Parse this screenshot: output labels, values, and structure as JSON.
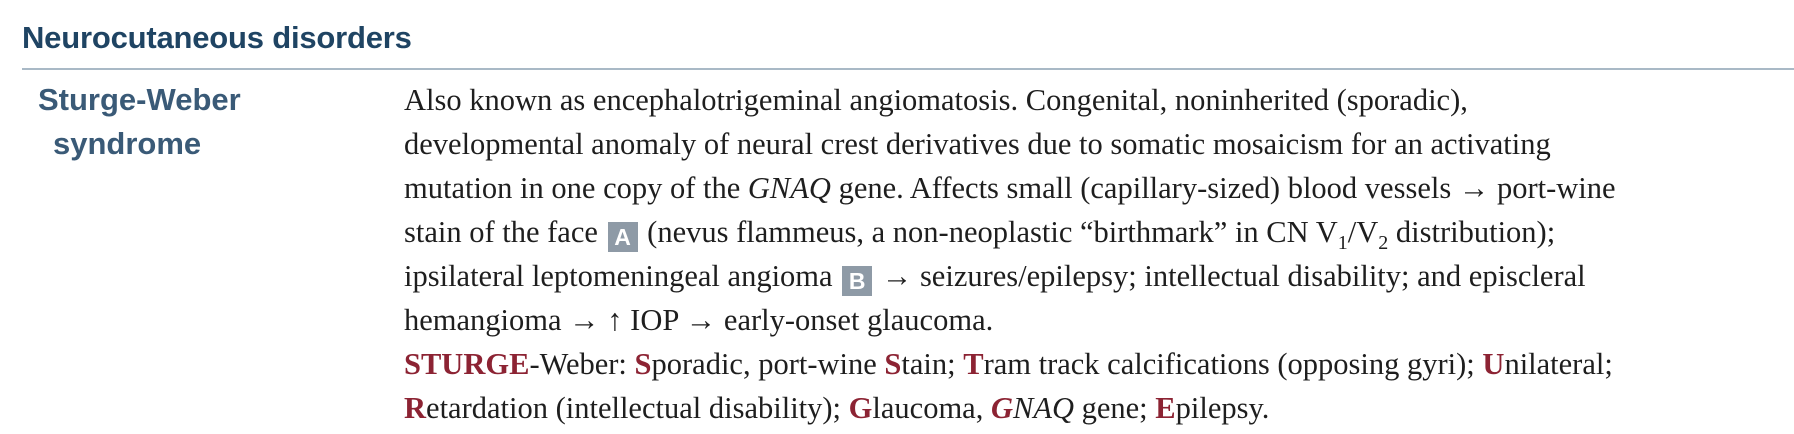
{
  "section": {
    "title": "Neurocutaneous disorders"
  },
  "term": {
    "line1": "Sturge-Weber",
    "line2": "syndrome"
  },
  "desc": {
    "l1": "Also known as encephalotrigeminal angiomatosis. Congenital, noninherited (sporadic),",
    "l2": "developmental anomaly of neural crest derivatives due to somatic mosaicism for an activating",
    "l3a": "mutation in one copy of the ",
    "l3gene": "GNAQ",
    "l3b": " gene. Affects small (capillary-sized) blood vessels → port-wine",
    "l4a": "stain of the face",
    "badgeA": "A",
    "l4b": "(nevus flammeus, a non-neoplastic “birthmark” in CN V",
    "l4sub1": "1",
    "l4mid": "/V",
    "l4sub2": "2",
    "l4c": " distribution);",
    "l5a": "ipsilateral leptomeningeal angioma",
    "badgeB": "B",
    "l5b": "→ seizures/epilepsy; intellectual disability; and episcleral",
    "l6": "hemangioma → ↑ IOP → early-onset glaucoma."
  },
  "mnemonic": {
    "word": "STURGE",
    "suffix": "-Weber: ",
    "s": "S",
    "s_rest": "poradic, port-wine ",
    "s2": "S",
    "s2_rest": "tain; ",
    "t": "T",
    "t_rest": "ram track calcifications (opposing gyri); ",
    "u": "U",
    "u_rest": "nilateral;",
    "r": "R",
    "r_rest": "etardation (intellectual disability); ",
    "g": "G",
    "g_rest": "laucoma, ",
    "g2": "G",
    "g2_rest": "NAQ",
    "g2_tail": " gene; ",
    "e": "E",
    "e_rest": "pilepsy."
  },
  "colors": {
    "heading": "#1f4463",
    "term": "#3a5a77",
    "rule": "#a9b9c6",
    "mnemonic": "#8c2333",
    "badge": "#8e9aa6"
  }
}
